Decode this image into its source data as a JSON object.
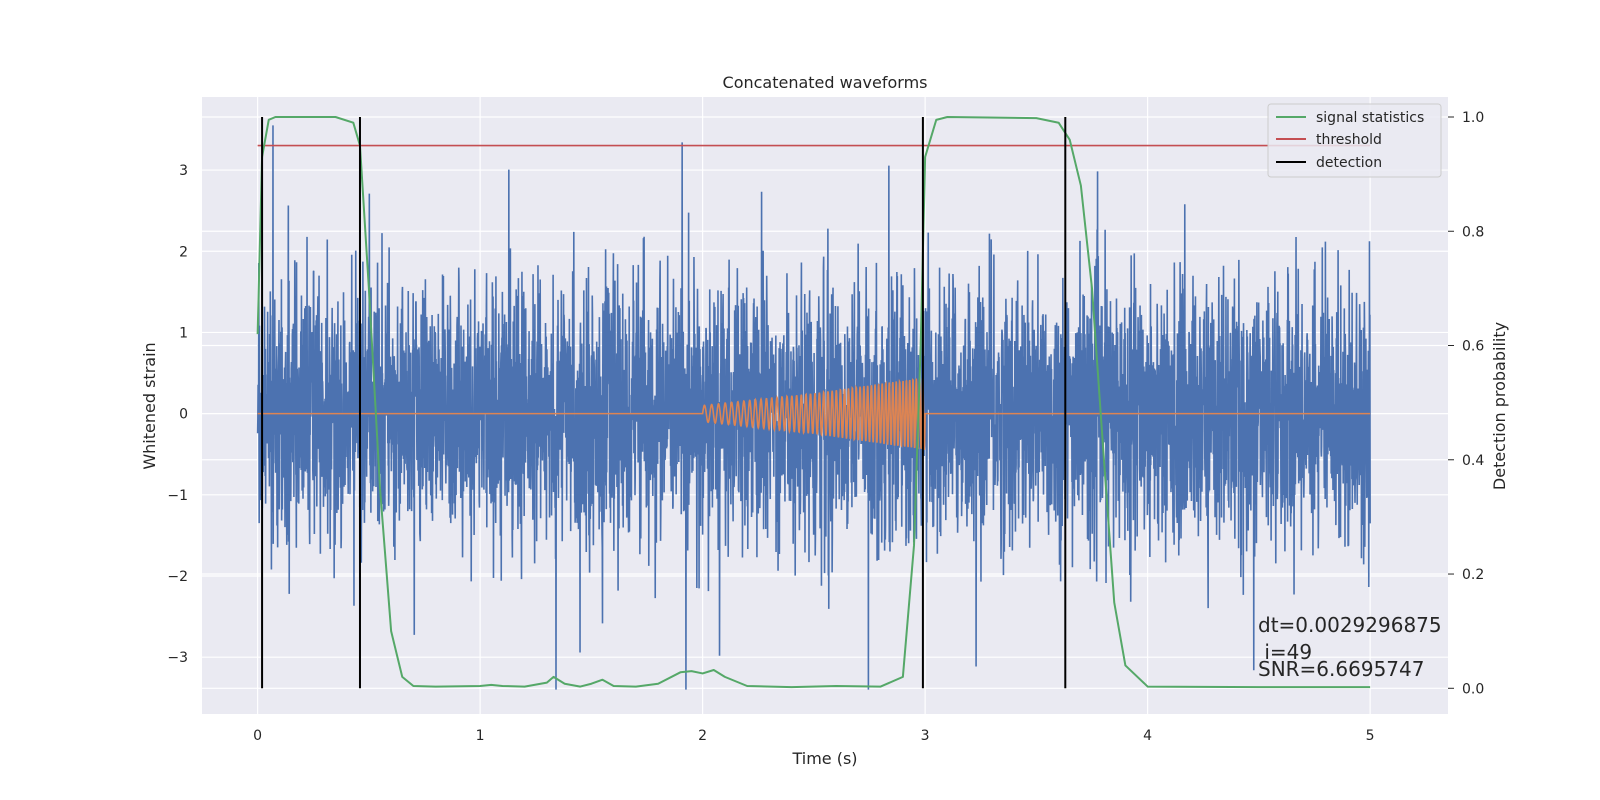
{
  "chart_data": {
    "type": "line",
    "title": "Concatenated waveforms",
    "xlabel": "Time (s)",
    "ylabel_left": "Whitened strain",
    "ylabel_right": "Detection probability",
    "xlim": [
      -0.25,
      5.35
    ],
    "ylim_left": [
      -3.7,
      3.9
    ],
    "ylim_right": [
      -0.045,
      1.035
    ],
    "x_ticks": [
      0,
      1,
      2,
      3,
      4,
      5
    ],
    "x_tick_labels": [
      "0",
      "1",
      "2",
      "3",
      "4",
      "5"
    ],
    "y_left_ticks": [
      -3,
      -2,
      -1,
      0,
      1,
      2,
      3
    ],
    "y_left_tick_labels": [
      "−3",
      "−2",
      "−1",
      "0",
      "1",
      "2",
      "3"
    ],
    "y_right_ticks": [
      0.0,
      0.2,
      0.4,
      0.6,
      0.8,
      1.0
    ],
    "y_right_tick_labels": [
      "0.0",
      "0.2",
      "0.4",
      "0.6",
      "0.8",
      "1.0"
    ],
    "grid": true,
    "legend_position": "top-right",
    "legend": [
      {
        "label": "signal statistics",
        "color": "#55a868"
      },
      {
        "label": "threshold",
        "color": "#c44e52"
      },
      {
        "label": "detection",
        "color": "#000000"
      }
    ],
    "series": [
      {
        "color": "#4c72b0",
        "axis": "left",
        "style": "noise",
        "x_range": [
          0,
          5
        ],
        "amplitude_range": [
          -3.4,
          3.55
        ]
      },
      {
        "color": "#dd8452",
        "axis": "left",
        "style": "chirp",
        "x": [
          0.0,
          2.0,
          2.0,
          2.5,
          3.0,
          3.0,
          5.0
        ],
        "envelope": [
          0.0,
          0.0,
          0.1,
          0.25,
          0.45,
          0.0,
          0.0
        ]
      },
      {
        "name": "signal statistics",
        "color": "#55a868",
        "axis": "right",
        "x": [
          0.0,
          0.02,
          0.05,
          0.08,
          0.35,
          0.43,
          0.46,
          0.5,
          0.55,
          0.6,
          0.65,
          0.7,
          0.8,
          1.0,
          1.05,
          1.1,
          1.2,
          1.3,
          1.33,
          1.38,
          1.45,
          1.5,
          1.55,
          1.6,
          1.7,
          1.8,
          1.9,
          1.95,
          2.0,
          2.05,
          2.1,
          2.2,
          2.4,
          2.6,
          2.8,
          2.9,
          2.95,
          2.98,
          3.0,
          3.05,
          3.1,
          3.5,
          3.6,
          3.65,
          3.7,
          3.75,
          3.8,
          3.85,
          3.9,
          4.0,
          4.5,
          5.0
        ],
        "y": [
          0.62,
          0.93,
          0.995,
          1.0,
          1.0,
          0.99,
          0.95,
          0.7,
          0.35,
          0.1,
          0.02,
          0.004,
          0.003,
          0.004,
          0.006,
          0.004,
          0.003,
          0.01,
          0.02,
          0.008,
          0.003,
          0.008,
          0.015,
          0.004,
          0.003,
          0.008,
          0.028,
          0.03,
          0.026,
          0.032,
          0.02,
          0.004,
          0.002,
          0.004,
          0.003,
          0.02,
          0.25,
          0.6,
          0.93,
          0.995,
          1.0,
          0.998,
          0.99,
          0.96,
          0.88,
          0.7,
          0.42,
          0.15,
          0.04,
          0.003,
          0.002,
          0.002
        ]
      },
      {
        "name": "threshold",
        "color": "#c44e52",
        "axis": "right",
        "x": [
          0,
          5
        ],
        "y": [
          0.95,
          0.95
        ]
      }
    ],
    "detections": [
      0.02,
      0.46,
      2.99,
      3.63
    ],
    "detection_color": "#000000",
    "annotation_lines": [
      "dt=0.0029296875",
      " i=49",
      "SNR=6.6695747"
    ]
  },
  "colors": {
    "plot_background": "#eaeaf2",
    "grid": "#ffffff",
    "page_background": "#ffffff"
  }
}
